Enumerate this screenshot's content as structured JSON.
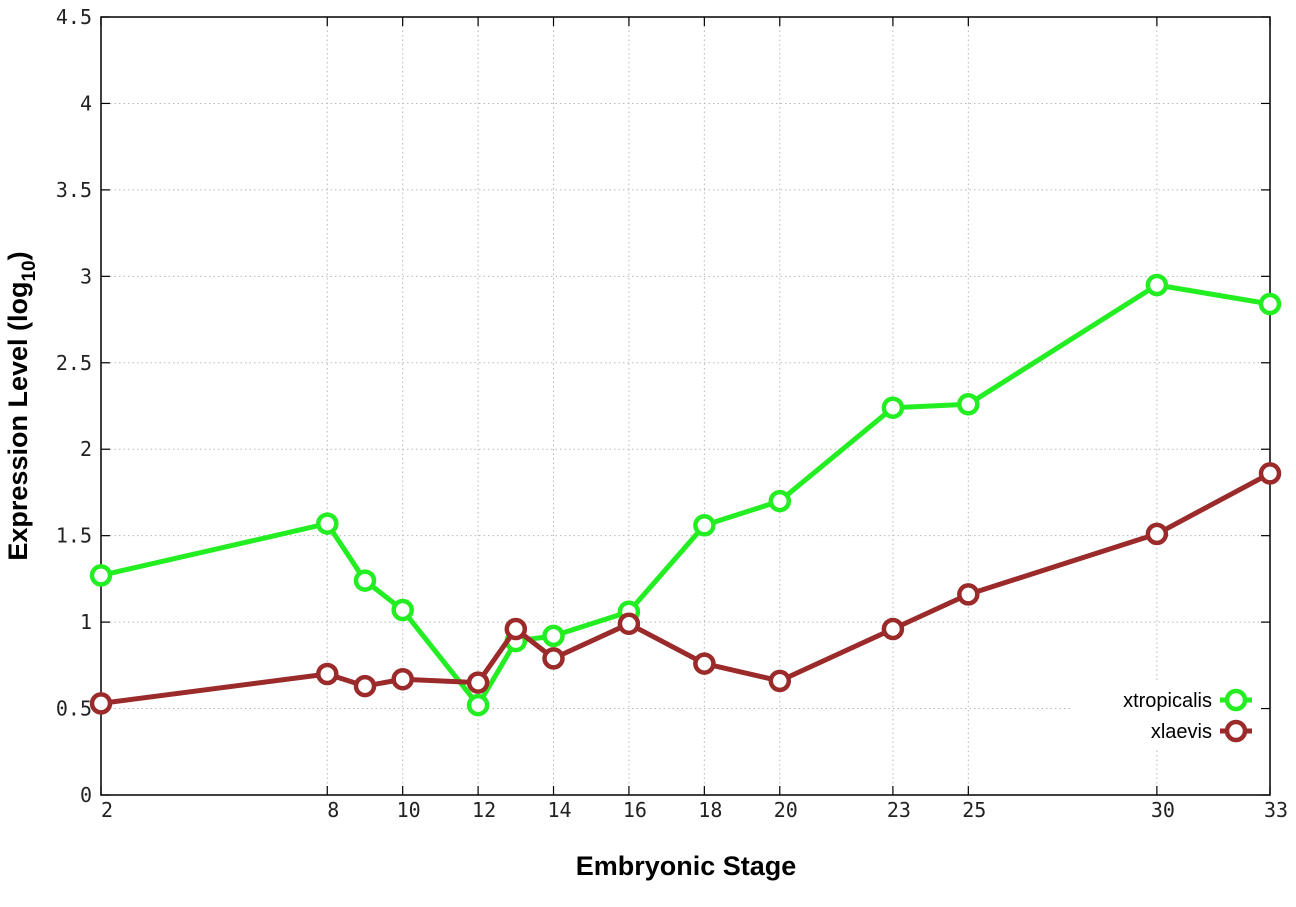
{
  "chart_data": {
    "type": "line",
    "xlabel": "Embryonic Stage",
    "ylabel": "Expression Level (log",
    "ylabel_subscript": "10",
    "ylabel_close": ")",
    "xlim": [
      2,
      33
    ],
    "ylim": [
      0,
      4.5
    ],
    "x_ticks": [
      2,
      8,
      10,
      12,
      14,
      16,
      18,
      20,
      23,
      25,
      30,
      33
    ],
    "y_ticks": [
      0,
      0.5,
      1,
      1.5,
      2,
      2.5,
      3,
      3.5,
      4,
      4.5
    ],
    "y_tick_labels": [
      "0",
      "0.5",
      "1",
      "1.5",
      "2",
      "2.5",
      "3",
      "3.5",
      "4",
      "4.5"
    ],
    "grid": true,
    "legend_position": "bottom-right",
    "x": [
      2,
      8,
      9,
      10,
      12,
      13,
      14,
      16,
      18,
      20,
      23,
      25,
      30,
      33
    ],
    "series": [
      {
        "name": "xtropicalis",
        "color": "#22ee22",
        "values": [
          1.27,
          1.57,
          1.24,
          1.07,
          0.52,
          0.89,
          0.92,
          1.06,
          1.56,
          1.7,
          2.24,
          2.26,
          2.95,
          2.84
        ]
      },
      {
        "name": "xlaevis",
        "color": "#9b2a2a",
        "values": [
          0.53,
          0.7,
          0.63,
          0.67,
          0.65,
          0.96,
          0.79,
          0.99,
          0.76,
          0.66,
          0.96,
          1.16,
          1.51,
          1.86
        ]
      }
    ]
  }
}
